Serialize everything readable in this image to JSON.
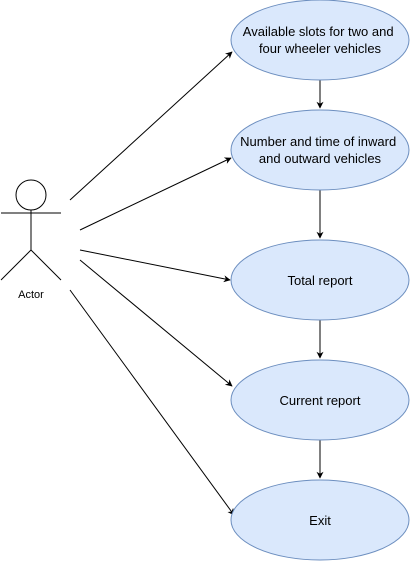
{
  "actor": {
    "label": "Actor"
  },
  "use_cases": [
    {
      "lines": [
        "Available slots for two and",
        "four wheeler vehicles"
      ]
    },
    {
      "lines": [
        "Number and time of inward",
        "and outward vehicles"
      ]
    },
    {
      "lines": [
        "Total report"
      ]
    },
    {
      "lines": [
        "Current report"
      ]
    },
    {
      "lines": [
        "Exit"
      ]
    }
  ],
  "colors": {
    "fill": "#dae8fc",
    "stroke": "#6c8ebf",
    "line": "#000000"
  }
}
